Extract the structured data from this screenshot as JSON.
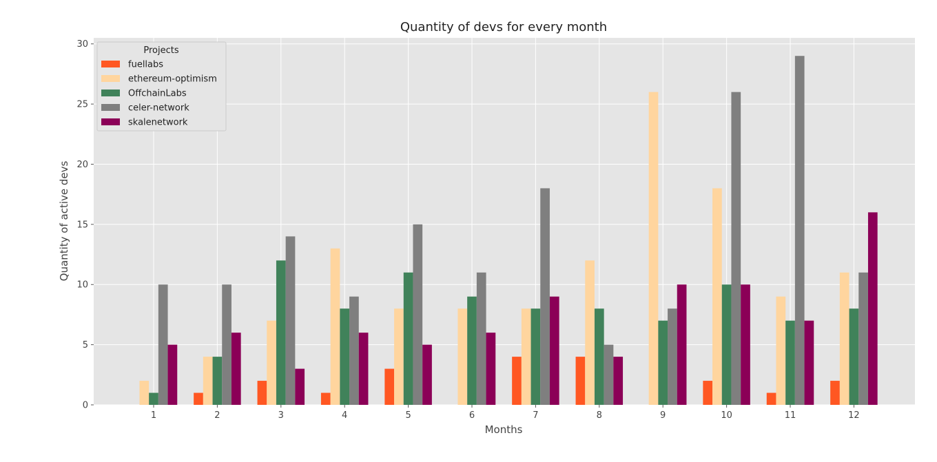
{
  "chart_data": {
    "type": "bar",
    "title": "Quantity of devs for every month",
    "xlabel": "Months",
    "ylabel": "Quantity of active devs",
    "ylim": [
      0,
      30.5
    ],
    "yticks": [
      0,
      5,
      10,
      15,
      20,
      25,
      30
    ],
    "categories": [
      "1",
      "2",
      "3",
      "4",
      "5",
      "6",
      "7",
      "8",
      "9",
      "10",
      "11",
      "12"
    ],
    "grid": true,
    "legend": {
      "title": "Projects",
      "placement": "top-left"
    },
    "series": [
      {
        "name": "fuellabs",
        "color": "#FF5722",
        "values": [
          0,
          1,
          2,
          1,
          3,
          0,
          4,
          4,
          0,
          2,
          1,
          2
        ]
      },
      {
        "name": "ethereum-optimism",
        "color": "#FFD59E",
        "values": [
          2,
          4,
          7,
          13,
          8,
          8,
          8,
          12,
          26,
          18,
          9,
          11
        ]
      },
      {
        "name": "OffchainLabs",
        "color": "#40825A",
        "values": [
          1,
          4,
          12,
          8,
          11,
          9,
          8,
          8,
          7,
          10,
          7,
          8
        ]
      },
      {
        "name": "celer-network",
        "color": "#7F7F7F",
        "values": [
          10,
          10,
          14,
          9,
          15,
          11,
          18,
          5,
          8,
          26,
          29,
          11
        ]
      },
      {
        "name": "skalenetwork",
        "color": "#8B0057",
        "values": [
          5,
          6,
          3,
          6,
          5,
          6,
          9,
          4,
          10,
          10,
          7,
          16
        ]
      }
    ]
  }
}
